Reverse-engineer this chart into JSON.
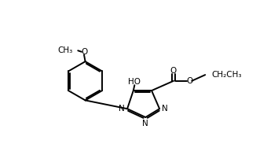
{
  "background_color": "#ffffff",
  "line_color": "#000000",
  "line_width": 1.4,
  "font_size": 7.5,
  "figsize": [
    3.54,
    2.02
  ],
  "dpi": 100,
  "labels": {
    "methoxy_o": "O",
    "methoxy_ch3": "CH₃",
    "ho": "HO",
    "carbonyl_o": "O",
    "ester_o": "O",
    "ethyl": "CH₂CH₃",
    "N1": "N",
    "N2": "N",
    "N3": "N"
  }
}
